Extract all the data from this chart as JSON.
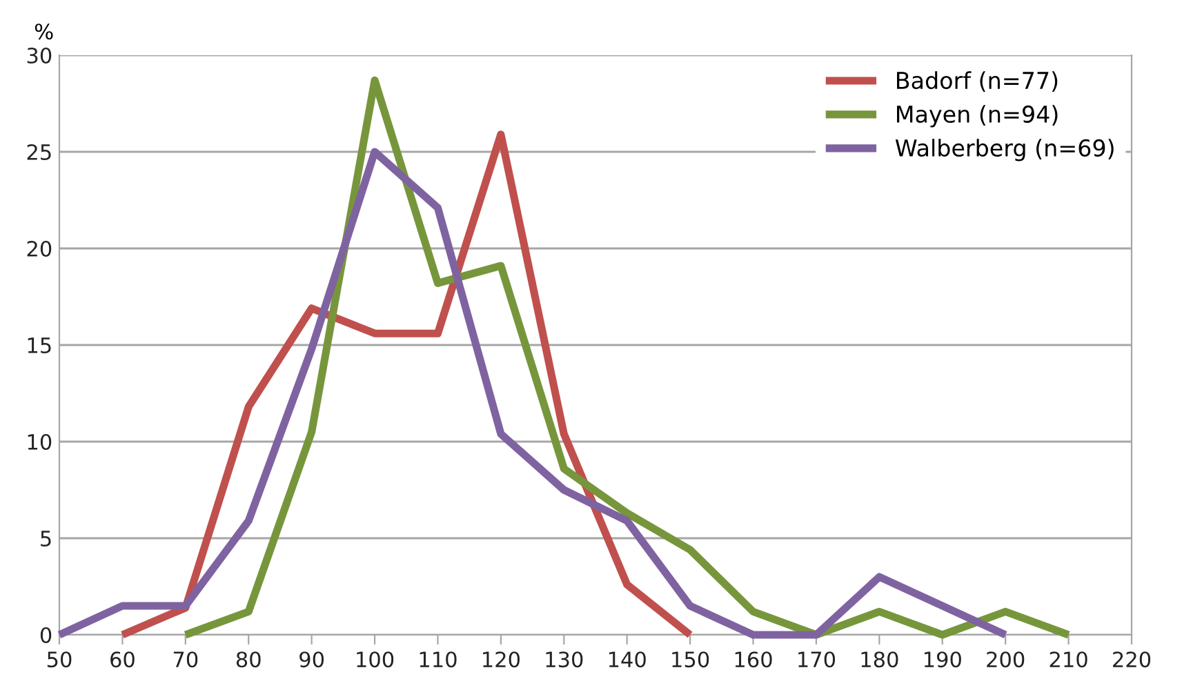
{
  "chart_data": {
    "type": "line",
    "ylabel": "%",
    "xlim": [
      50,
      220
    ],
    "xticks": [
      50,
      60,
      70,
      80,
      90,
      100,
      110,
      120,
      130,
      140,
      150,
      160,
      170,
      180,
      190,
      200,
      210,
      220
    ],
    "ylim": [
      0,
      30
    ],
    "yticks": [
      0,
      5,
      10,
      15,
      20,
      25,
      30
    ],
    "grid": "y",
    "legend": "top right",
    "marker": "none",
    "line_style": "solid",
    "series": [
      {
        "name": "Badorf (n=77)",
        "color": "#c0504d",
        "x": [
          60,
          70,
          80,
          90,
          100,
          110,
          120,
          130,
          140,
          150
        ],
        "values": [
          0,
          1.4,
          11.8,
          16.9,
          15.6,
          15.6,
          25.9,
          10.4,
          2.6,
          0
        ]
      },
      {
        "name": "Mayen (n=94)",
        "color": "#77963c",
        "x": [
          70,
          80,
          90,
          100,
          110,
          120,
          130,
          140,
          150,
          160,
          170,
          180,
          190,
          200,
          210
        ],
        "values": [
          0,
          1.2,
          10.5,
          28.7,
          18.2,
          19.1,
          8.6,
          6.3,
          4.4,
          1.2,
          0,
          1.2,
          0,
          1.2,
          0
        ]
      },
      {
        "name": "Walberberg (n=69)",
        "color": "#7f63a1",
        "x": [
          50,
          60,
          70,
          80,
          90,
          100,
          110,
          120,
          130,
          140,
          150,
          160,
          170,
          180,
          190,
          200
        ],
        "values": [
          0,
          1.5,
          1.5,
          5.9,
          14.8,
          25,
          22.1,
          10.4,
          7.5,
          5.9,
          1.5,
          0,
          0,
          3.0,
          1.5,
          0
        ]
      }
    ]
  }
}
